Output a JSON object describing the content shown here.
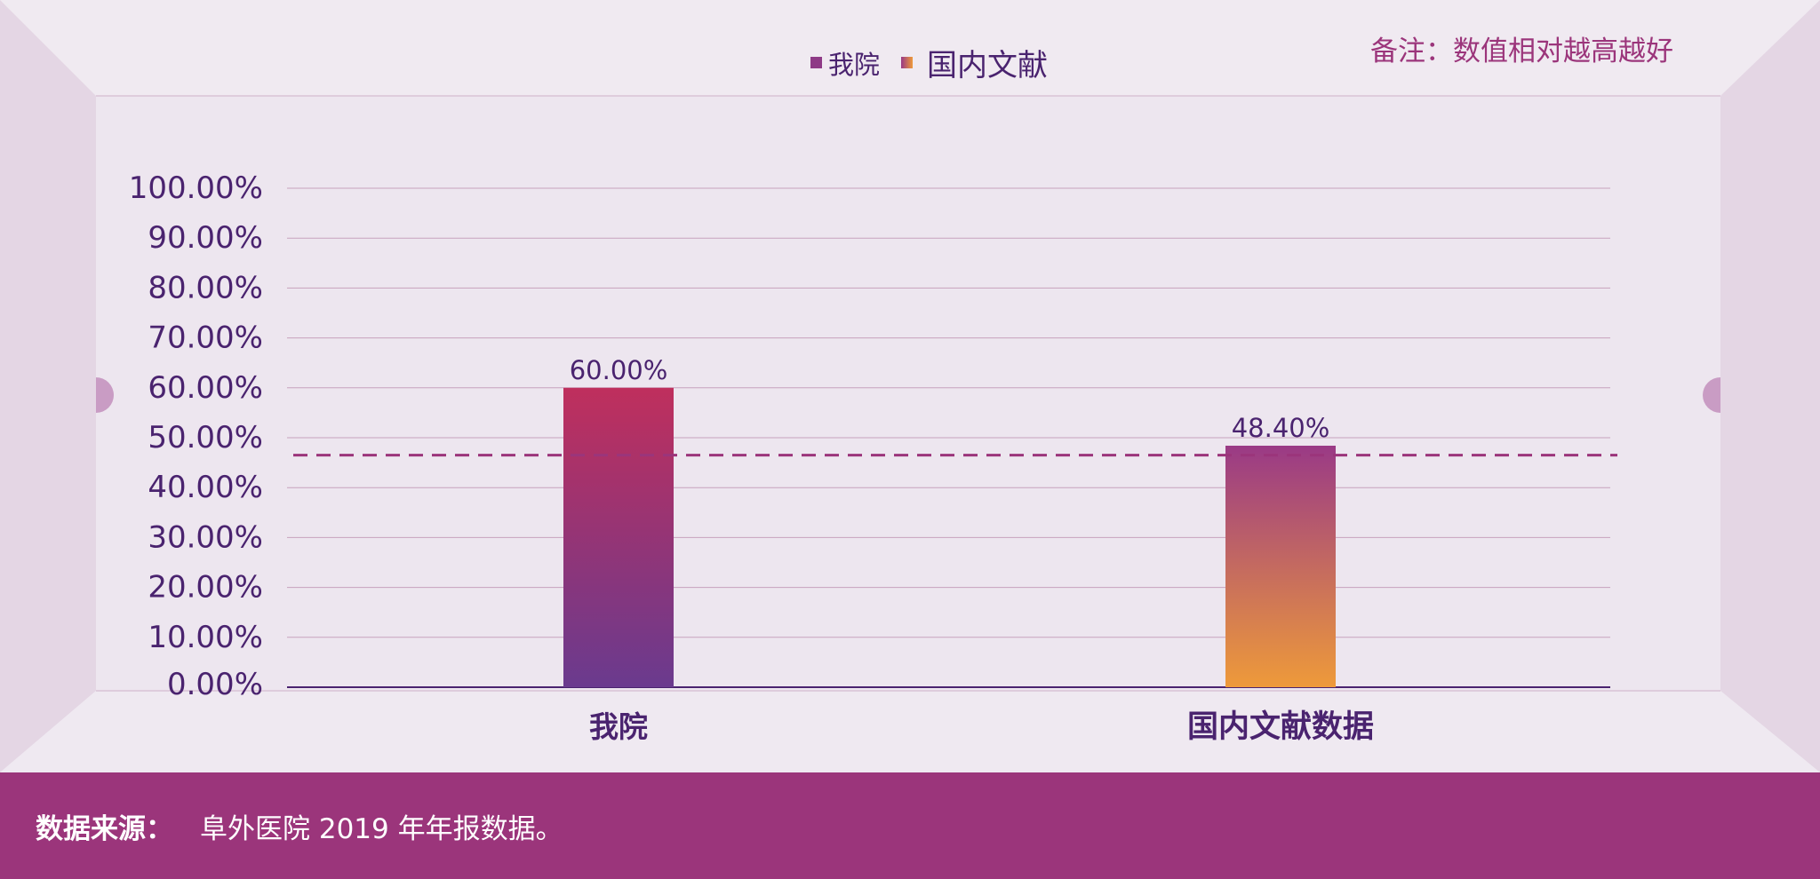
{
  "note": "备注：数值相对越高越好",
  "footer": {
    "source_label": "数据来源：",
    "source_text": "阜外医院 2019 年年报数据。"
  },
  "legend": [
    {
      "label": "我院",
      "color": "#8e3a86"
    },
    {
      "label": "国内文献",
      "color": "#e8923a"
    }
  ],
  "colors": {
    "bar1_top": "#bf2f5d",
    "bar1_bottom": "#6a3a8e",
    "bar2_top": "#9a3a86",
    "bar2_bottom": "#ee9a3a",
    "axis_text": "#4a236f",
    "grid": "#c7a2bd",
    "reference_line": "#9b357b",
    "footer_bg": "#9b357b"
  },
  "chart_data": {
    "type": "bar",
    "categories": [
      "我院",
      "国内文献数据"
    ],
    "values": [
      60.0,
      48.4
    ],
    "value_labels": [
      "60.00%",
      "48.40%"
    ],
    "yticks": [
      "0.00%",
      "10.00%",
      "20.00%",
      "30.00%",
      "40.00%",
      "50.00%",
      "60.00%",
      "70.00%",
      "80.00%",
      "90.00%",
      "100.00%"
    ],
    "ylim": [
      0,
      100
    ],
    "reference_line": 46.5,
    "legend_position": "top-center",
    "grid": true
  }
}
